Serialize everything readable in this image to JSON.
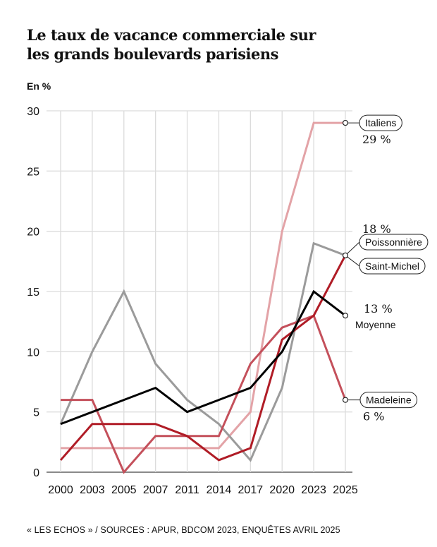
{
  "header": {
    "title_line1": "Le taux de vacance commerciale sur",
    "title_line2": "les grands boulevards parisiens",
    "unit": "En %"
  },
  "footer": {
    "source": "« LES ECHOS » / SOURCES : APUR, BDCOM 2023, ENQUÊTES AVRIL 2025"
  },
  "chart_data": {
    "type": "line",
    "title": "Le taux de vacance commerciale sur les grands boulevards parisiens",
    "xlabel": "",
    "ylabel": "En %",
    "x": [
      "2000",
      "2003",
      "2005",
      "2007",
      "2011",
      "2014",
      "2017",
      "2020",
      "2023",
      "2025"
    ],
    "y_ticks": [
      "0",
      "5",
      "10",
      "15",
      "20",
      "25",
      "30"
    ],
    "ylim": [
      0,
      30
    ],
    "grid": true,
    "series": [
      {
        "name": "Italiens",
        "color": "#e3a3a7",
        "values": [
          2,
          2,
          2,
          2,
          2,
          2,
          5,
          20,
          29,
          29
        ],
        "end_label": "29 %",
        "label_style": "pill"
      },
      {
        "name": "Saint-Michel",
        "color": "#9b9b9b",
        "values": [
          4,
          10,
          15,
          9,
          6,
          4,
          1,
          7,
          19,
          18
        ],
        "end_label": "",
        "label_style": "pill"
      },
      {
        "name": "Madeleine",
        "color": "#c4505b",
        "values": [
          6,
          6,
          0,
          3,
          3,
          3,
          9,
          12,
          13,
          6
        ],
        "end_label": "6 %",
        "label_style": "pill"
      },
      {
        "name": "Poissonnière",
        "color": "#b01c26",
        "values": [
          1,
          4,
          4,
          4,
          3,
          1,
          2,
          11,
          13,
          18
        ],
        "end_label": "18 %",
        "label_style": "pill"
      },
      {
        "name": "Moyenne",
        "color": "#000000",
        "values": [
          4,
          5,
          6,
          7,
          5,
          6,
          7,
          10,
          15,
          13
        ],
        "end_label": "13 %",
        "label_style": "plain"
      }
    ]
  }
}
